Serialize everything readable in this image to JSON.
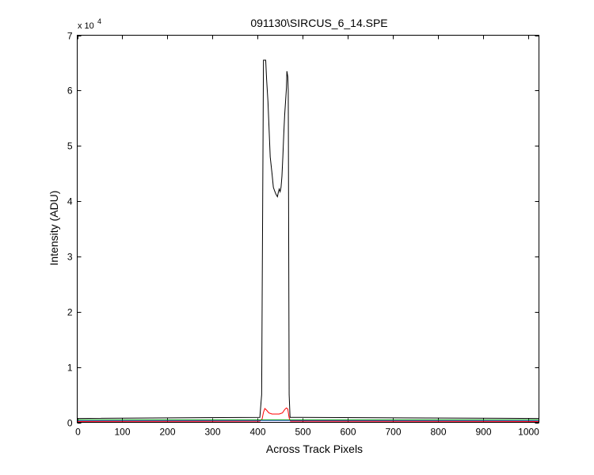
{
  "chart_data": {
    "type": "line",
    "title": "091130\\SIRCUS_6_14.SPE",
    "xlabel": "Across Track Pixels",
    "ylabel": "Intensity (ADU)",
    "y_multiplier_label": {
      "base": "x 10",
      "exponent": "4"
    },
    "xlim": [
      0,
      1024
    ],
    "ylim": [
      0,
      70000
    ],
    "xticks": [
      0,
      100,
      200,
      300,
      400,
      500,
      600,
      700,
      800,
      900,
      1000
    ],
    "yticks": [
      0,
      10000,
      20000,
      30000,
      40000,
      50000,
      60000,
      70000
    ],
    "ytick_labels": [
      "0",
      "1",
      "2",
      "3",
      "4",
      "5",
      "6",
      "7"
    ],
    "grid": false,
    "series": [
      {
        "color": "#000000",
        "x": [
          0,
          405,
          409,
          412,
          413,
          418,
          420,
          423,
          425,
          428,
          432,
          435,
          438,
          441,
          444,
          446,
          448,
          450,
          452,
          454,
          456,
          458,
          460,
          462,
          464,
          465,
          467,
          468,
          470,
          472,
          1024
        ],
        "y": [
          700,
          900,
          5000,
          50000,
          65500,
          65500,
          62000,
          58000,
          54000,
          48000,
          45000,
          42500,
          41800,
          41200,
          40800,
          41600,
          42200,
          41700,
          42500,
          44500,
          48000,
          52000,
          55500,
          58000,
          60500,
          63500,
          62500,
          60000,
          5000,
          900,
          700
        ]
      },
      {
        "color": "#ff0000",
        "x": [
          0,
          405,
          410,
          413,
          416,
          420,
          425,
          432,
          440,
          448,
          455,
          460,
          464,
          467,
          470,
          473,
          1024
        ],
        "y": [
          150,
          200,
          600,
          1800,
          2500,
          2200,
          1700,
          1500,
          1500,
          1500,
          1700,
          2300,
          2600,
          2400,
          800,
          200,
          150
        ]
      },
      {
        "color": "#0000ff",
        "x": [
          0,
          1024
        ],
        "y": [
          350,
          350
        ]
      },
      {
        "color": "#00aa00",
        "x": [
          0,
          1024
        ],
        "y": [
          450,
          450
        ]
      }
    ]
  }
}
